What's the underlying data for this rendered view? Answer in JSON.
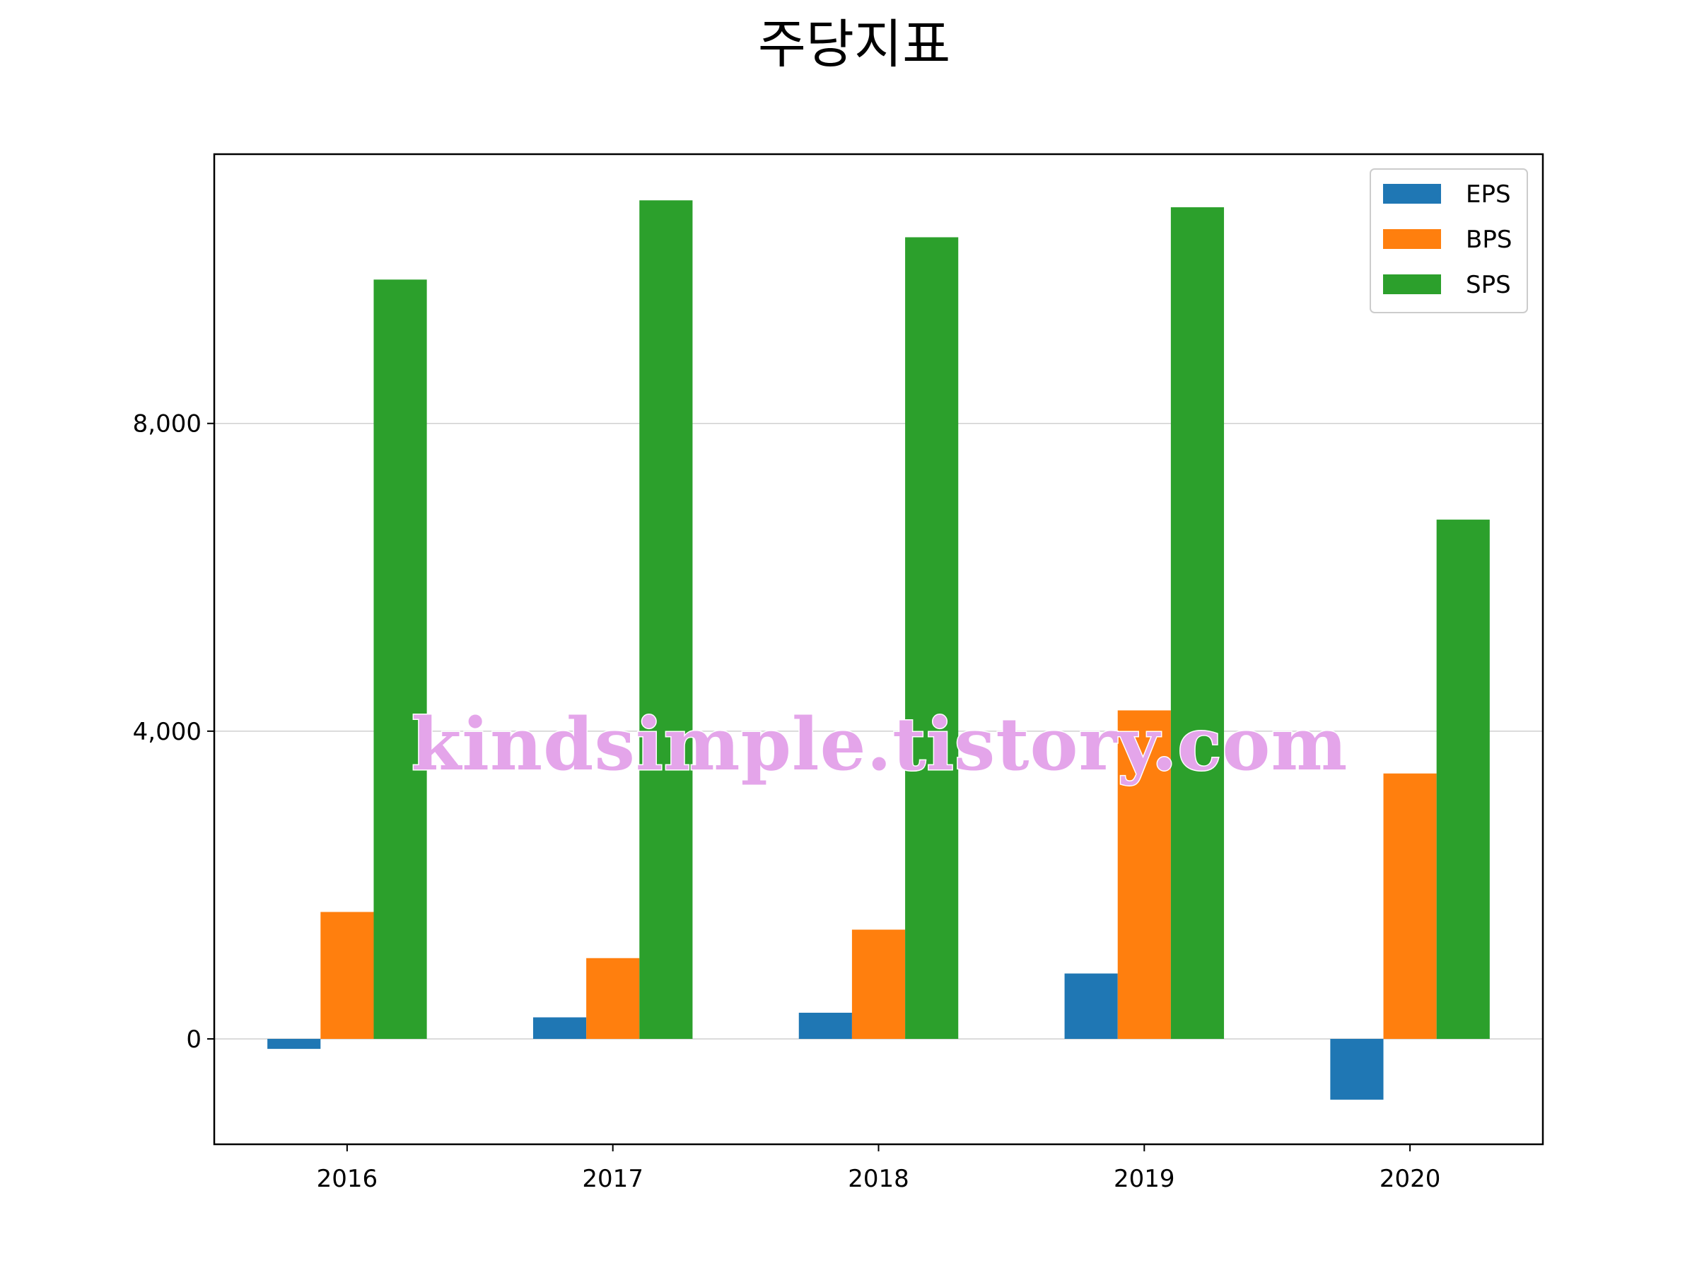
{
  "chart_data": {
    "type": "bar",
    "title": "주당지표",
    "categories": [
      "2016",
      "2017",
      "2018",
      "2019",
      "2020"
    ],
    "series": [
      {
        "name": "EPS",
        "color": "#1f77b4",
        "values": [
          -130,
          280,
          340,
          850,
          -790
        ]
      },
      {
        "name": "BPS",
        "color": "#ff7f0e",
        "values": [
          1650,
          1050,
          1420,
          4270,
          3450
        ]
      },
      {
        "name": "SPS",
        "color": "#2ca02c",
        "values": [
          9870,
          10900,
          10420,
          10810,
          6750
        ]
      }
    ],
    "yticks": [
      0,
      4000,
      8000
    ],
    "ytick_labels": [
      "0",
      "4,000",
      "8,000"
    ],
    "ylim": [
      -1370,
      11500
    ],
    "xlabel": "",
    "ylabel": "",
    "grid": "y-major",
    "legend_position": "top-right"
  },
  "watermark": "kindsimple.tistory.com"
}
